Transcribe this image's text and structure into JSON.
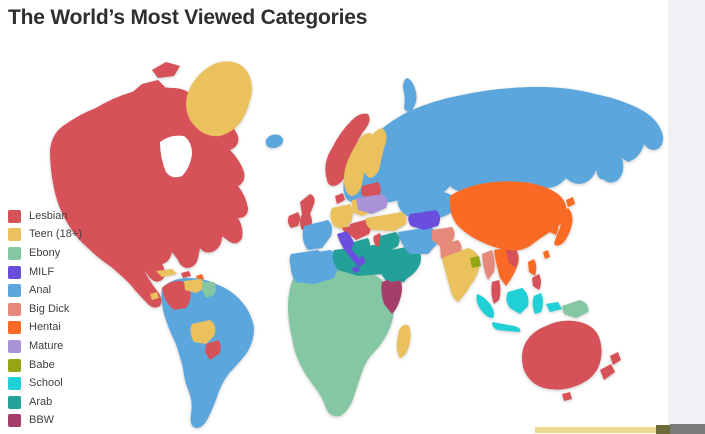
{
  "page": {
    "title": "The World’s Most Viewed Categories"
  },
  "colors": {
    "background": "#ffffff",
    "title_text": "#2f2f2f",
    "legend_text": "#3f3f3f",
    "right_panel": "#eff1f4",
    "ocean": "#ffffff",
    "bottom_bar_yellow": "#e9d98e",
    "bottom_bar_olive": "#6d6a39",
    "bottom_bar_gray": "#7b7b7b"
  },
  "legend": {
    "items": [
      {
        "label": "Lesbian",
        "color": "#d65158"
      },
      {
        "label": "Teen (18+)",
        "color": "#eac15d"
      },
      {
        "label": "Ebony",
        "color": "#84c7a2"
      },
      {
        "label": "MILF",
        "color": "#6a4ede"
      },
      {
        "label": "Anal",
        "color": "#5ba7dd"
      },
      {
        "label": "Big Dick",
        "color": "#e5897a"
      },
      {
        "label": "Hentai",
        "color": "#f96b24"
      },
      {
        "label": "Mature",
        "color": "#a992d6"
      },
      {
        "label": "Babe",
        "color": "#95a513"
      },
      {
        "label": "School",
        "color": "#1fd0d6"
      },
      {
        "label": "Arab",
        "color": "#23a098"
      },
      {
        "label": "BBW",
        "color": "#a53f6a"
      }
    ]
  },
  "map": {
    "regions": {
      "north-america": "Lesbian",
      "cuba": "Teen (18+)",
      "hispaniola": "Lesbian",
      "caribbean": "Hentai",
      "central-america-patch": "Teen (18+)",
      "south-america": "Anal",
      "colombia": "Lesbian",
      "venezuela": "Teen (18+)",
      "guyana": "Ebony",
      "bolivia": "Teen (18+)",
      "paraguay": "Lesbian",
      "greenland": "Teen (18+)",
      "iceland": "Anal",
      "norway": "Lesbian",
      "sweden": "Teen (18+)",
      "finland": "Teen (18+)",
      "united-kingdom": "Lesbian",
      "ireland": "Lesbian",
      "baltics": "Lesbian",
      "denmark": "Lesbian",
      "germany": "Teen (18+)",
      "poland": "Teen (18+)",
      "france": "Anal",
      "iberia": "Anal",
      "italy": "MILF",
      "sicily": "MILF",
      "central-europe": "Lesbian",
      "ukraine": "Mature",
      "balkans": "Lesbian",
      "greece": "Arab",
      "turkey": "Teen (18+)",
      "levant": "Lesbian",
      "russia": "Anal",
      "kazakhstan": "Anal",
      "novaya-zemlya": "Anal",
      "central-asia": "MILF",
      "iran": "Anal",
      "iraq": "Arab",
      "saudi-arabia": "Arab",
      "afghanistan": "Big Dick",
      "pakistan": "Big Dick",
      "india": "Teen (18+)",
      "bangladesh": "Babe",
      "myanmar": "Big Dick",
      "indochina": "Hentai",
      "vietnam": "Lesbian",
      "malay-peninsula": "Lesbian",
      "china": "Hentai",
      "korea": "Hentai",
      "japan": "Hentai",
      "taiwan": "Hentai",
      "philippines": "Hentai",
      "philippines-south": "Lesbian",
      "indonesia": "School",
      "new-guinea": "Ebony",
      "africa": "Ebony",
      "northwest-africa": "Anal",
      "libya-egypt": "Arab",
      "horn-of-africa": "Arab",
      "east-africa": "BBW",
      "madagascar": "Teen (18+)",
      "australia": "Lesbian",
      "tasmania": "Lesbian",
      "new-zealand": "Lesbian"
    }
  }
}
